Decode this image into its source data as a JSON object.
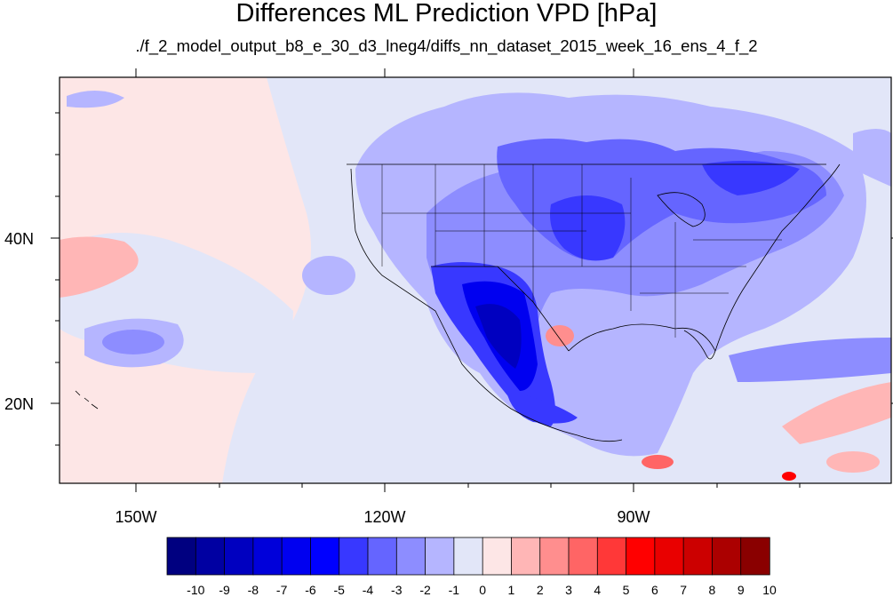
{
  "figure": {
    "title": "Differences ML Prediction VPD [hPa]",
    "subtitle": "./f_2_model_output_b8_e_30_d3_lneg4/diffs_nn_dataset_2015_week_16_ens_4_f_2"
  },
  "map": {
    "projection": "cylindrical equidistant",
    "lon_range": [
      -159.3,
      -60.5
    ],
    "lat_range": [
      9.5,
      58.7
    ],
    "x_tick_labels": [
      "150W",
      "120W",
      "90W"
    ],
    "y_tick_labels": [
      "40N",
      "20N"
    ],
    "features": [
      "coastlines",
      "country borders",
      "US state borders",
      "Great Lakes",
      "Hawaii"
    ],
    "background_value_ocean_west": "0 to 1",
    "notable_regions": [
      {
        "name": "US Southwest / northern Mexico",
        "value_range": "-6 to -10"
      },
      {
        "name": "Upper Midwest / Great Lakes",
        "value_range": "-4 to -6"
      },
      {
        "name": "Southern Mexico",
        "value_range": "-4 to -6"
      },
      {
        "name": "Texas Gulf coast",
        "value_range": "2 to 4"
      },
      {
        "name": "Caribbean coast near 12N",
        "value_range": "3 to 6"
      },
      {
        "name": "Atlantic southeast",
        "value_range": "1 to 3"
      }
    ]
  },
  "colorbar": {
    "labels": [
      "-10",
      "-9",
      "-8",
      "-7",
      "-6",
      "-5",
      "-4",
      "-3",
      "-2",
      "-1",
      "0",
      "1",
      "2",
      "3",
      "4",
      "5",
      "6",
      "7",
      "8",
      "9",
      "10"
    ],
    "colors": [
      "#000080",
      "#0000a2",
      "#0000c0",
      "#0000da",
      "#0000f0",
      "#0000ff",
      "#3838ff",
      "#6565ff",
      "#8d8dff",
      "#b5b5ff",
      "#e2e6f8",
      "#fde6e6",
      "#ffb6b6",
      "#ff8e8e",
      "#ff6565",
      "#ff3838",
      "#ff0000",
      "#e90000",
      "#cc0000",
      "#ab0000",
      "#8a0000"
    ]
  }
}
